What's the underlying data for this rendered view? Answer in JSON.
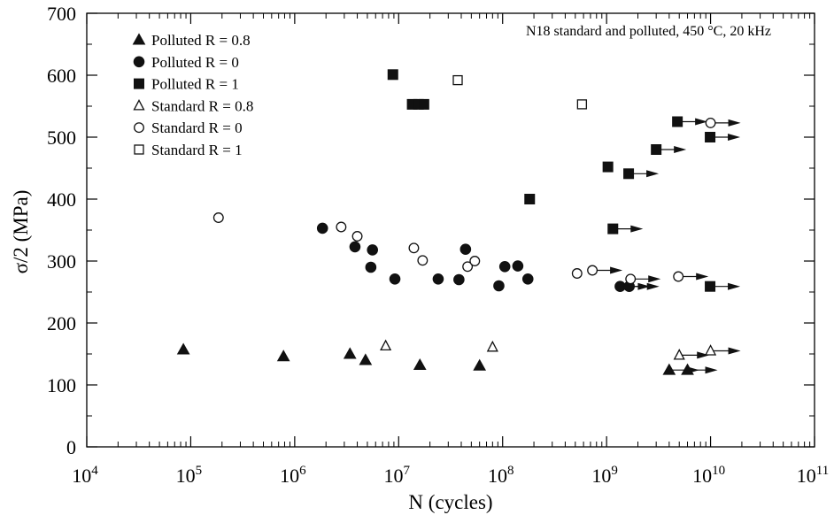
{
  "chart_data": {
    "type": "scatter",
    "title": "",
    "annotation": "N18 standard and polluted, 450 °C, 20 kHz",
    "xlabel": "N (cycles)",
    "ylabel": "σ/2 (MPa)",
    "xscale": "log",
    "xlim": [
      10000,
      100000000000
    ],
    "ylim": [
      0,
      700
    ],
    "grid": false,
    "legend_position": "top-left",
    "x_ticks": [
      {
        "base": "10",
        "exp": "4"
      },
      {
        "base": "10",
        "exp": "5"
      },
      {
        "base": "10",
        "exp": "6"
      },
      {
        "base": "10",
        "exp": "7"
      },
      {
        "base": "10",
        "exp": "8"
      },
      {
        "base": "10",
        "exp": "9"
      },
      {
        "base": "10",
        "exp": "10"
      },
      {
        "base": "10",
        "exp": "11"
      }
    ],
    "y_ticks": [
      "0",
      "100",
      "200",
      "300",
      "400",
      "500",
      "600",
      "700"
    ],
    "series": [
      {
        "name": "Polluted R = 0.8",
        "marker": "triangle",
        "filled": true,
        "points": [
          {
            "x": 85000,
            "y": 157
          },
          {
            "x": 780000,
            "y": 146
          },
          {
            "x": 3400000,
            "y": 150
          },
          {
            "x": 4800000,
            "y": 140
          },
          {
            "x": 16000000,
            "y": 132
          },
          {
            "x": 60000000,
            "y": 131
          },
          {
            "x": 4000000000,
            "y": 124,
            "runout": true
          },
          {
            "x": 6000000000,
            "y": 124,
            "runout": true
          }
        ]
      },
      {
        "name": "Polluted R = 0",
        "marker": "circle",
        "filled": true,
        "points": [
          {
            "x": 1850000,
            "y": 353
          },
          {
            "x": 3800000,
            "y": 323
          },
          {
            "x": 5400000,
            "y": 290
          },
          {
            "x": 5600000,
            "y": 318
          },
          {
            "x": 9200000,
            "y": 271
          },
          {
            "x": 24000000,
            "y": 271
          },
          {
            "x": 38000000,
            "y": 270
          },
          {
            "x": 44000000,
            "y": 319
          },
          {
            "x": 92000000,
            "y": 260
          },
          {
            "x": 105000000,
            "y": 291
          },
          {
            "x": 140000000,
            "y": 292
          },
          {
            "x": 175000000,
            "y": 271
          },
          {
            "x": 1350000000,
            "y": 259,
            "runout": true
          },
          {
            "x": 1650000000,
            "y": 259,
            "runout": true
          }
        ]
      },
      {
        "name": "Polluted R = 1",
        "marker": "square",
        "filled": true,
        "points": [
          {
            "x": 8800000,
            "y": 601
          },
          {
            "x": 13500000,
            "y": 553
          },
          {
            "x": 15500000,
            "y": 553
          },
          {
            "x": 17500000,
            "y": 553
          },
          {
            "x": 182000000,
            "y": 400
          },
          {
            "x": 1030000000,
            "y": 452
          },
          {
            "x": 1150000000,
            "y": 352,
            "runout": true
          },
          {
            "x": 1630000000,
            "y": 441,
            "runout": true
          },
          {
            "x": 3000000000,
            "y": 480,
            "runout": true
          },
          {
            "x": 4800000000,
            "y": 525,
            "runout": true
          },
          {
            "x": 9900000000,
            "y": 500,
            "runout": true
          },
          {
            "x": 9900000000,
            "y": 259,
            "runout": true
          }
        ]
      },
      {
        "name": "Standard R = 0.8",
        "marker": "triangle",
        "filled": false,
        "points": [
          {
            "x": 7500000,
            "y": 163
          },
          {
            "x": 80000000,
            "y": 161
          },
          {
            "x": 5000000000,
            "y": 148,
            "runout": true
          },
          {
            "x": 10000000000,
            "y": 155,
            "runout": true
          }
        ]
      },
      {
        "name": "Standard R = 0",
        "marker": "circle",
        "filled": false,
        "points": [
          {
            "x": 185000,
            "y": 370
          },
          {
            "x": 2800000,
            "y": 355
          },
          {
            "x": 4000000,
            "y": 340
          },
          {
            "x": 14000000,
            "y": 321
          },
          {
            "x": 17000000,
            "y": 301
          },
          {
            "x": 46000000,
            "y": 291
          },
          {
            "x": 54000000,
            "y": 300
          },
          {
            "x": 520000000,
            "y": 280
          },
          {
            "x": 730000000,
            "y": 285,
            "runout": true
          },
          {
            "x": 1700000000,
            "y": 271,
            "runout": true
          },
          {
            "x": 4900000000,
            "y": 275,
            "runout": true
          },
          {
            "x": 10000000000,
            "y": 523,
            "runout": true
          }
        ]
      },
      {
        "name": "Standard R = 1",
        "marker": "square",
        "filled": false,
        "points": [
          {
            "x": 37000000,
            "y": 592
          },
          {
            "x": 580000000,
            "y": 553
          }
        ]
      }
    ]
  }
}
